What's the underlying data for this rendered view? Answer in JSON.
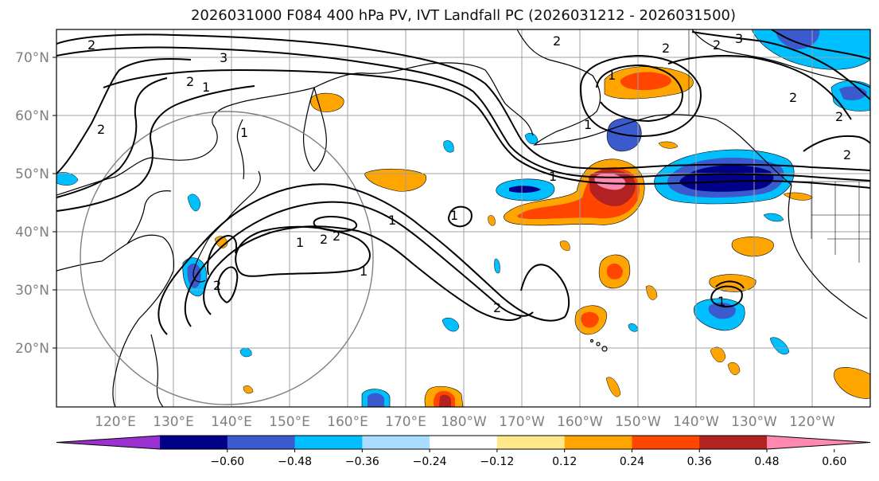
{
  "title": "2026031000 F084 400 hPa PV, IVT Landfall PC (2026031212 - 2026031500)",
  "lat_labels": [
    "70°N",
    "60°N",
    "50°N",
    "40°N",
    "30°N",
    "20°N"
  ],
  "lon_labels": [
    "120°E",
    "130°E",
    "140°E",
    "150°E",
    "160°E",
    "170°E",
    "180°W",
    "170°W",
    "160°W",
    "150°W",
    "140°W",
    "130°W",
    "120°W"
  ],
  "contour_labels": [
    "2",
    "3",
    "2",
    "1",
    "2",
    "1",
    "1",
    "2",
    "1",
    "1",
    "2",
    "2",
    "1",
    "2",
    "2",
    "1",
    "1",
    "2",
    "3",
    "2",
    "2",
    "2",
    "1",
    "1",
    "2"
  ],
  "colorbar": {
    "labels": [
      "−0.60",
      "−0.48",
      "−0.36",
      "−0.24",
      "−0.12",
      "0.12",
      "0.24",
      "0.36",
      "0.48",
      "0.60"
    ],
    "colors": [
      "#9b30d0",
      "#000088",
      "#3a5acd",
      "#00bfff",
      "#aadcff",
      "#ffffff",
      "#ffe88a",
      "#ffa500",
      "#ff4500",
      "#b22222",
      "#ff88b0"
    ]
  },
  "colors": {
    "land_line": "#000000",
    "grid": "#a0a0a0",
    "circle": "#808080",
    "pv_contour": "#000000"
  }
}
